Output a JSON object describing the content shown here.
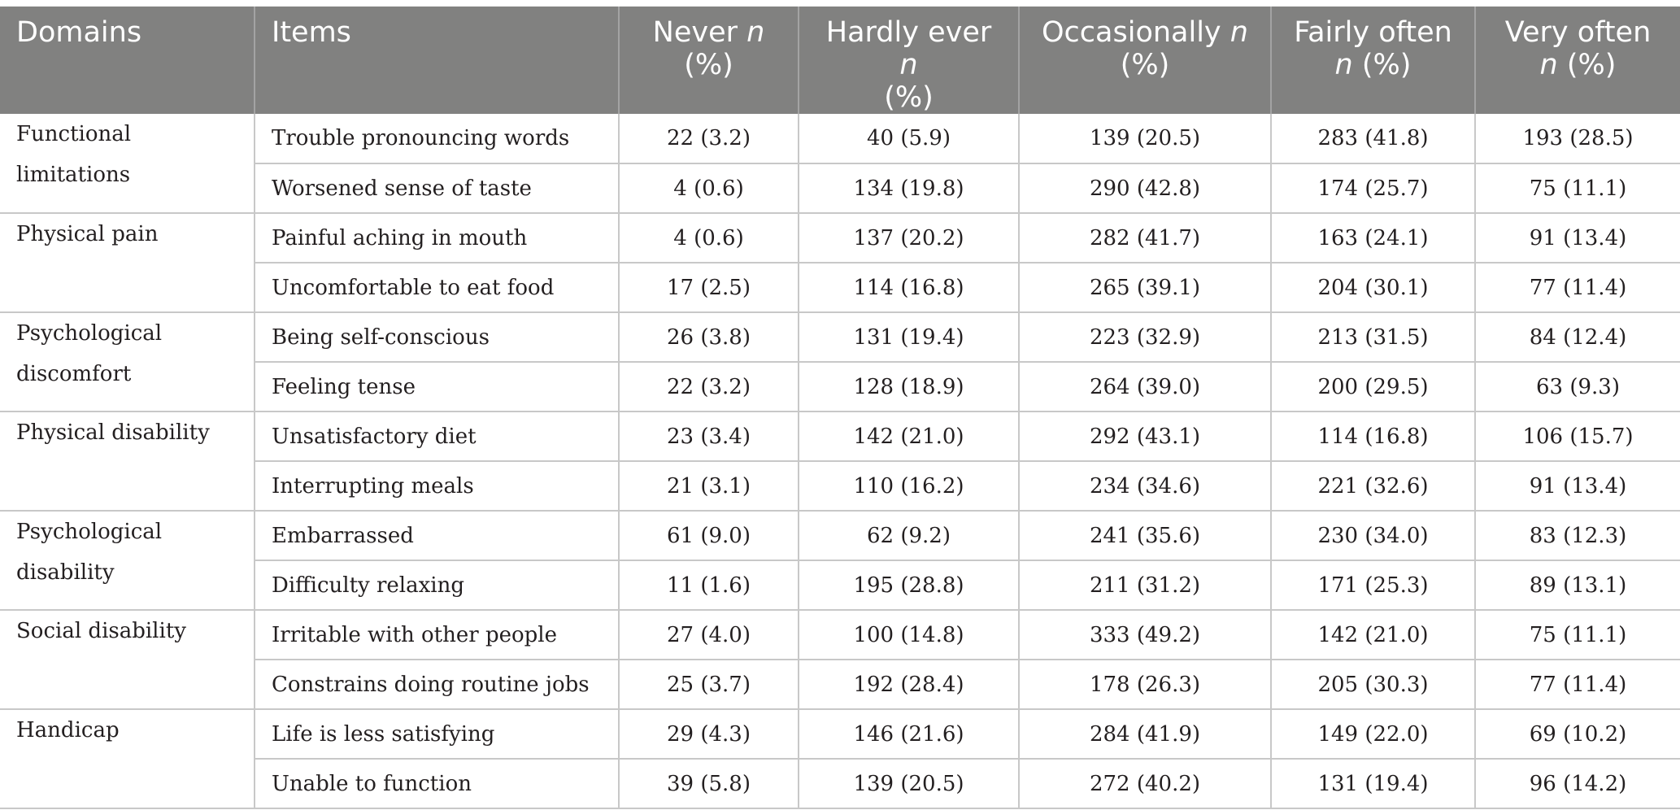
{
  "header": {
    "domains": "Domains",
    "items": "Items",
    "cols": [
      {
        "label": "Never",
        "sub": "(%)"
      },
      {
        "label": "Hardly ever",
        "sub": "(%)"
      },
      {
        "label": "Occasionally",
        "sub": "(%)"
      },
      {
        "label": "Fairly often",
        "sub": "(%)"
      },
      {
        "label": "Very often",
        "sub": "(%)"
      }
    ],
    "n": "n"
  },
  "groups": [
    {
      "domain": "Functional limitations",
      "rows": [
        {
          "item": "Trouble pronouncing words",
          "values": [
            "22 (3.2)",
            "40 (5.9)",
            "139 (20.5)",
            "283 (41.8)",
            "193 (28.5)"
          ]
        },
        {
          "item": "Worsened sense of taste",
          "values": [
            "4 (0.6)",
            "134 (19.8)",
            "290 (42.8)",
            "174 (25.7)",
            "75 (11.1)"
          ]
        }
      ]
    },
    {
      "domain": "Physical pain",
      "rows": [
        {
          "item": "Painful aching in mouth",
          "values": [
            "4 (0.6)",
            "137 (20.2)",
            "282 (41.7)",
            "163 (24.1)",
            "91 (13.4)"
          ]
        },
        {
          "item": "Uncomfortable to eat food",
          "values": [
            "17 (2.5)",
            "114 (16.8)",
            "265 (39.1)",
            "204 (30.1)",
            "77 (11.4)"
          ]
        }
      ]
    },
    {
      "domain": "Psychological discomfort",
      "rows": [
        {
          "item": "Being self-conscious",
          "values": [
            "26 (3.8)",
            "131 (19.4)",
            "223 (32.9)",
            "213 (31.5)",
            "84 (12.4)"
          ]
        },
        {
          "item": "Feeling tense",
          "values": [
            "22 (3.2)",
            "128 (18.9)",
            "264 (39.0)",
            "200 (29.5)",
            "63 (9.3)"
          ]
        }
      ]
    },
    {
      "domain": "Physical disability",
      "rows": [
        {
          "item": "Unsatisfactory diet",
          "values": [
            "23 (3.4)",
            "142 (21.0)",
            "292 (43.1)",
            "114 (16.8)",
            "106 (15.7)"
          ]
        },
        {
          "item": "Interrupting meals",
          "values": [
            "21 (3.1)",
            "110 (16.2)",
            "234 (34.6)",
            "221 (32.6)",
            "91 (13.4)"
          ]
        }
      ]
    },
    {
      "domain": "Psychological disability",
      "rows": [
        {
          "item": "Embarrassed",
          "values": [
            "61 (9.0)",
            "62 (9.2)",
            "241 (35.6)",
            "230 (34.0)",
            "83 (12.3)"
          ]
        },
        {
          "item": "Difficulty relaxing",
          "values": [
            "11 (1.6)",
            "195 (28.8)",
            "211 (31.2)",
            "171 (25.3)",
            "89 (13.1)"
          ]
        }
      ]
    },
    {
      "domain": "Social disability",
      "rows": [
        {
          "item": "Irritable with other people",
          "values": [
            "27 (4.0)",
            "100 (14.8)",
            "333 (49.2)",
            "142 (21.0)",
            "75 (11.1)"
          ]
        },
        {
          "item": "Constrains doing routine jobs",
          "values": [
            "25 (3.7)",
            "192 (28.4)",
            "178 (26.3)",
            "205 (30.3)",
            "77 (11.4)"
          ]
        }
      ]
    },
    {
      "domain": "Handicap",
      "rows": [
        {
          "item": "Life is less satisfying",
          "values": [
            "29 (4.3)",
            "146 (21.6)",
            "284 (41.9)",
            "149 (22.0)",
            "69 (10.2)"
          ]
        },
        {
          "item": "Unable to function",
          "values": [
            "39 (5.8)",
            "139 (20.5)",
            "272 (40.2)",
            "131 (19.4)",
            "96 (14.2)"
          ]
        }
      ]
    }
  ]
}
